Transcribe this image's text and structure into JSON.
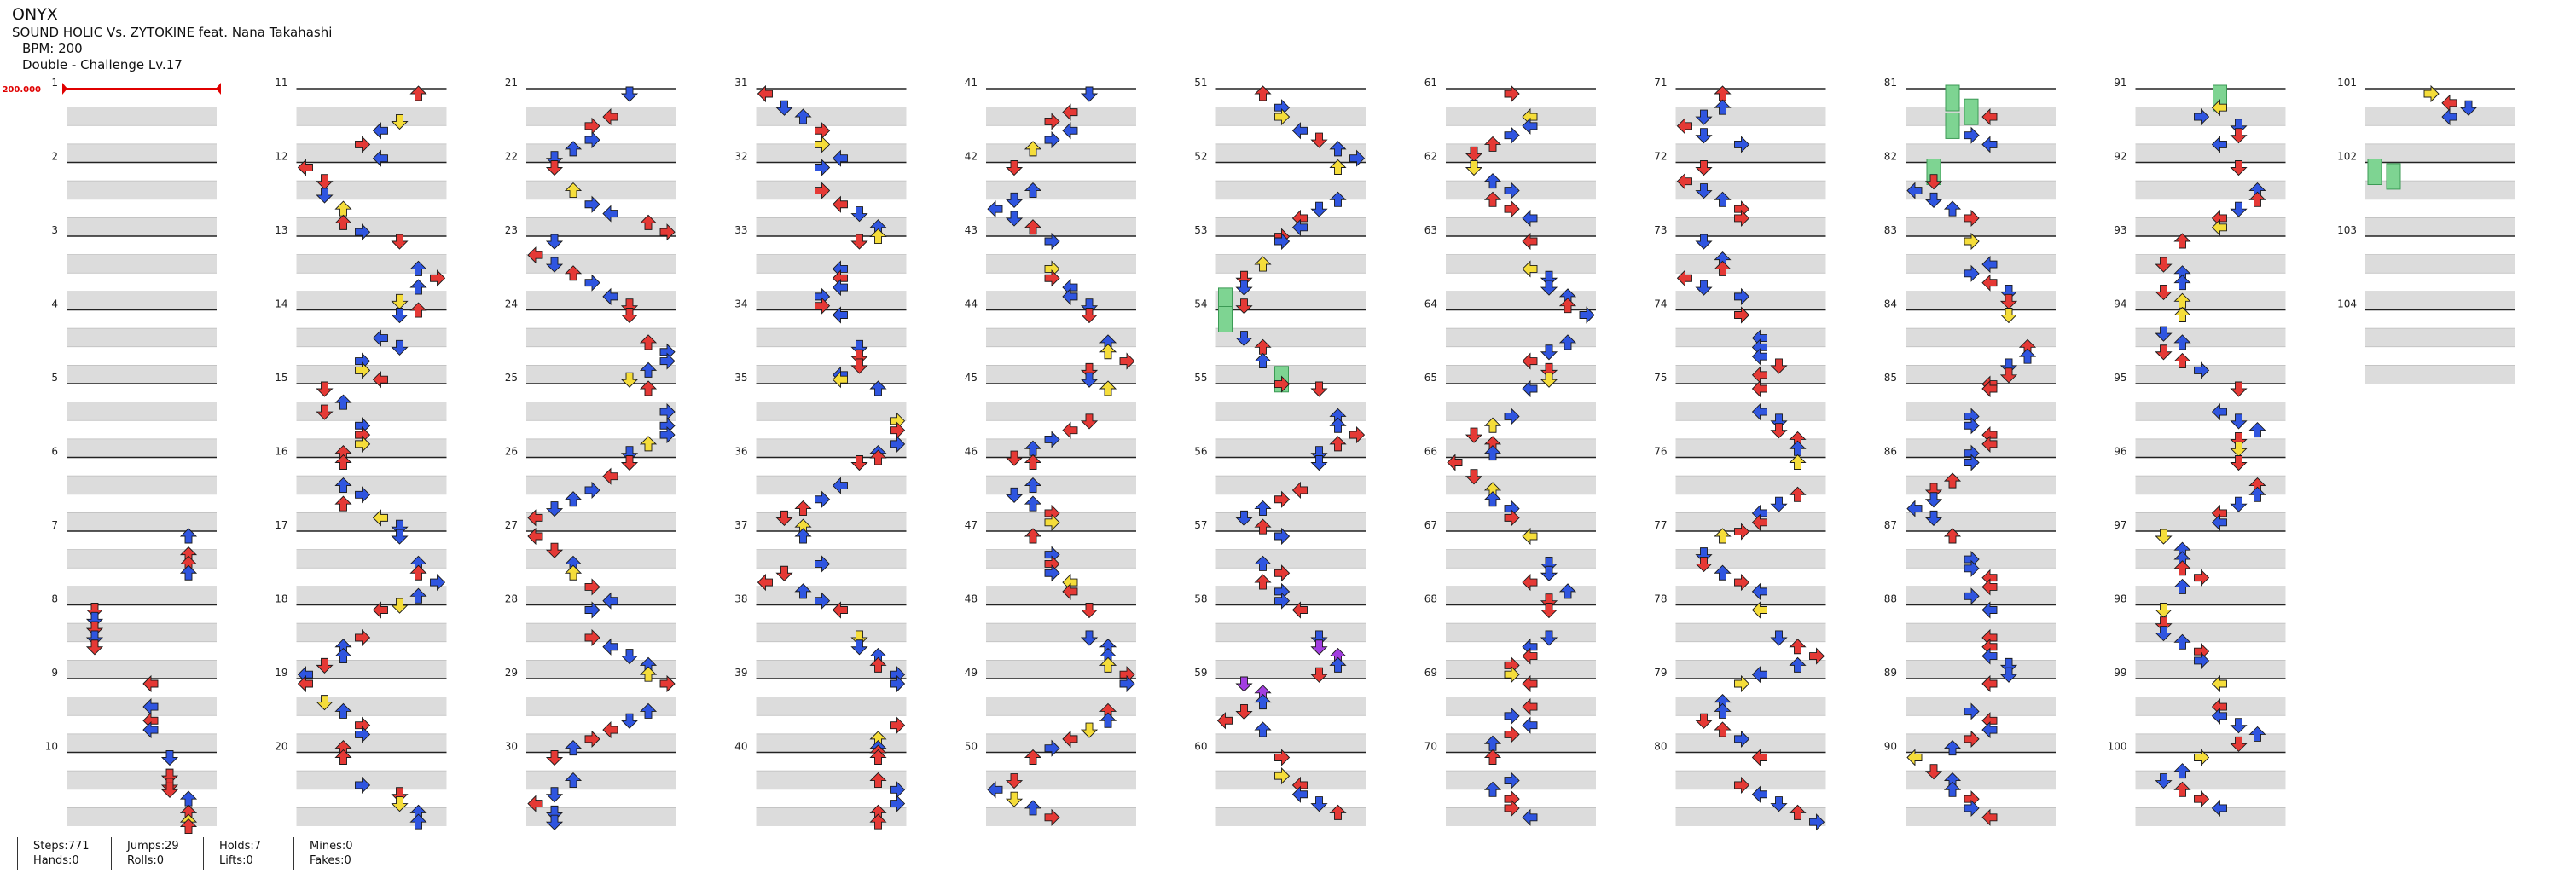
{
  "song": {
    "title": "ONYX",
    "artist_line": "SOUND HOLIC Vs. ZYTOKINE feat. Nana Takahashi",
    "bpm_line": "BPM: 200",
    "difficulty_line": "Double - Challenge Lv.17"
  },
  "bpm_marker": "200.000",
  "measure_count": 104,
  "columns": 11,
  "measures_per_column": 10,
  "measure_labels": [
    "1",
    "2",
    "3",
    "4",
    "5",
    "6",
    "7",
    "8",
    "9",
    "10",
    "11",
    "12",
    "13",
    "14",
    "15",
    "16",
    "17",
    "18",
    "19",
    "20",
    "21",
    "22",
    "23",
    "24",
    "25",
    "26",
    "27",
    "28",
    "29",
    "30",
    "31",
    "32",
    "33",
    "34",
    "35",
    "36",
    "37",
    "38",
    "39",
    "40",
    "41",
    "42",
    "43",
    "44",
    "45",
    "46",
    "47",
    "48",
    "49",
    "50",
    "51",
    "52",
    "53",
    "54",
    "55",
    "56",
    "57",
    "58",
    "59",
    "60",
    "61",
    "62",
    "63",
    "64",
    "65",
    "66",
    "67",
    "68",
    "69",
    "70",
    "71",
    "72",
    "73",
    "74",
    "75",
    "76",
    "77",
    "78",
    "79",
    "80",
    "81",
    "82",
    "83",
    "84",
    "85",
    "86",
    "87",
    "88",
    "89",
    "90",
    "91",
    "92",
    "93",
    "94",
    "95",
    "96",
    "97",
    "98",
    "99",
    "100",
    "101",
    "102",
    "103",
    "104"
  ],
  "colors": {
    "quarter": "#e53935",
    "eighth": "#2f55e0",
    "sixteenth": "#f5dd3a",
    "twelfth": "#a23ee0",
    "freeze": "#7ed492",
    "band": "#dcdcdc",
    "line": "#222222",
    "bpm": "#e00000"
  },
  "notes": [
    "7:2:6,3:4:6,3:6:6,2:8:6",
    "8:1:1,2:2:1,1:4:1,4:6:1,3:8:1",
    "9:3:4,2:5:4,3:8:4,2:10:4",
    "10:2:5,3:4:5,3:6:5,1:7:5,2:9:6,3:12:6,5:14:6,3:15:6",
    "11:3:6,5:6:5,2:8:4,3:11:3,2:14:4",
    "12:1:0,3:3:1,4:6:1,5:9:2,3:12:2,4:14:3",
    "13:3:5,2:6:6,1:8:7,6:10:6,5:13:5,3:15:6",
    "14:2:5,6:5:4,4:7:5,2:10:3,5:12:3,3:14:4",
    "15:1:1,4:3:2,3:5:1,2:8:3,3:10:3,5:12:3,1:14:2",
    "16:3:2,2:5:2,4:7:3,1:9:2,5:12:4,2:14:5",
    "17:4:5,6:6:6,3:8:6,2:10:7,6:13:6,5:15:5",
    "18:3:4,1:6:3,2:8:2,4:10:2,3:12:1,6:14:0",
    "19:1:0,5:4:1,2:6:2,3:9:3,4:11:3,1:14:2",
    "20:3:2,4:6:3,3:8:5,5:10:5,2:12:6,4:14:6",
    "21:2:5,1:5:4,3:7:3,4:10:3,6:12:2,2:14:1",
    "22:3:1,5:5:2,2:8:3,4:10:4,3:12:6,1:14:7",
    "23:6:1,3:3:0,4:5:1,1:7:2,4:9:3,6:12:4,3:14:5",
    "24:3:5,1:6:6,2:8:7,6:10:7,4:12:6,5:14:5",
    "25:3:6,2:5:7,4:8:7,4:10:7,5:12:6,2:14:5",
    "26:1:5,3:3:4,2:6:3,4:8:2,6:10:1,3:12:0",
    "27:1:0,3:3:1,4:6:2,5:8:2,3:11:3,2:14:4",
    "28:4:3,1:6:3,6:8:4,2:10:5,4:12:6,5:14:6",
    "29:3:7,2:6:6,4:8:5,1:10:4,3:12:3,6:14:2",
    "30:3:1,2:5:2,4:8:1,1:10:0,4:12:1,2:14:1",
    "31:1:0,2:3:1,4:5:2,3:8:3,5:11:3,2:14:4",
    "32:6:3,3:5:3,1:8:4,4:10:5,2:13:6,5:15:6",
    "33:3:5,4:6:4,1:8:4,2:10:4,4:12:3,3:14:3",
    "34:6:4,2:7:5,3:9:5,1:11:5,4:13:4,5:14:4",
    "35:4:6,5:7:7,3:9:7,2:12:7,6:14:6,1:15:6",
    "36:3:5,2:5:4,4:8:3,1:10:2,3:12:1,5:14:2",
    "37:4:2,2:6:3,1:8:1,3:10:0,2:12:2,6:14:3",
    "38:3:4,5:6:5,4:8:5,2:10:6,3:12:6,4:14:7",
    "39:6:7,1:9:7,5:12:6,4:14:6,3:15:6",
    "40:3:6,1:5:6,2:7:7,4:10:7,3:12:6,1:14:6",
    "41:2:5,1:4:4,3:6:3,4:8:4,6:10:3,5:12:2",
    "42:3:1,4:5:2,2:7:1,6:9:0,4:11:1,3:13:2",
    "43:4:3,5:6:3,1:8:3,2:10:4,4:12:4,6:14:5",
    "44:3:5,2:6:6,5:8:6,1:10:7,3:12:5,4:14:5",
    "45:5:6,1:7:5,3:9:4,2:11:3,4:13:2,1:15:1",
    "46:3:2,4:5:2,6:7:1,2:9:2,3:11:3,5:13:3",
    "47:1:2,4:4:3,3:6:3,2:8:3,5:10:4,1:12:4",
    "48:3:5,2:6:5,4:8:6,6:10:6,5:12:6,1:14:7",
    "49:4:7,3:6:6,2:8:6,5:10:5,3:12:4,6:14:3",
    "50:3:2,1:5:1,2:7:0,5:9:1,4:11:2,3:13:3",
    "51:1:2,2:3:3,5:5:3,4:8:4,3:10:5,6:12:6,2:14:7",
    "52:5:6,2:7:6,4:9:5,3:11:4,6:13:4,1:15:3",
    "53:2:3,5:5:2,3:8:1,4:10:1,7:12:0,1:14:1",
    "54:7:0,2:5:1,3:7:2,4:10:2,7:13:3,1:15:3",
    "55:3:5,2:6:6,4:8:6,1:10:7,3:12:6,2:14:5",
    "56:4:5,3:6:4,1:8:3,2:10:2,4:12:1,3:14:2",
    "57:4:3,2:6:2,3:8:3,1:10:2,4:12:3,6:14:3",
    "58:1:4,2:6:5,8:8:5,8:10:6,2:12:6,3:14:5",
    "59:8:1,8:2:2,4:4:2,3:6:1,1:8:0,2:10:2",
    "60:1:3,5:4:3,3:6:4,2:8:4,4:10:5,1:12:6",
    "61:3:3,5:5:4,2:7:4,4:9:3,1:11:2,3:13:1",
    "62:5:1,2:3:2,4:5:3,1:7:2,3:9:3,6:11:4",
    "63:3:4,5:6:4,4:8:5,2:10:5,6:12:6,3:14:6",
    "64:6:7,2:6:6,4:8:5,1:10:4,3:12:5,5:14:5",
    "65:4:4,2:6:3,5:8:2,3:10:1,1:12:2,4:14:2",
    "66:1:0,3:3:1,5:6:2,2:8:2,4:10:3,1:12:3",
    "67:5:4,2:6:5,4:8:5,3:10:4,6:12:6,1:14:5",
    "68:3:5,2:6:5,4:8:4,1:10:4,3:12:3,5:14:3",
    "69:3:4,1:5:4,2:7:3,4:9:4,3:11:3,6:13:2",
    "70:3:2,2:5:3,4:7:2,1:9:3,3:11:3,6:13:4",
    "71:1:2,2:3:2,4:5:1,3:7:0,6:9:1,2:11:3",
    "72:1:1,3:3:0,2:5:1,4:7:2,3:9:3,1:11:3",
    "73:2:1,4:4:2,3:6:2,1:8:0,6:10:1,2:12:3",
    "74:3:3,2:5:4,4:7:4,6:9:4,3:11:5,1:13:4",
    "75:3:4,2:5:4,4:7:5,1:9:5,3:11:6,2:13:6",
    "76:5:6,3:7:6,4:9:5,2:11:4,3:13:4,1:15:3",
    "77:5:2,2:4:1,3:6:1,4:8:2,1:10:3,2:12:4",
    "78:5:4,4:6:5,3:8:6,1:10:7,6:12:6,2:14:4",
    "79:5:3,2:4:2,4:6:2,3:8:1,1:10:2,4:12:3",
    "80:3:4,1:6:3,2:8:4,4:10:5,3:12:6,6:14:7",
    "81:7:2,7:3:3,3:5:4,7:6:2,2:9:3,4:11:4",
    "82:7:1,3:3:1,2:5:0,4:7:1,6:9:2,3:11:3",
    "83:5:3,4:5:4,2:7:3,3:9:4,6:11:5,1:13:5",
    "84:5:5,3:7:6,2:9:6,4:11:5,3:13:5,1:15:4",
    "85:3:4,2:6:3,4:8:3,1:10:4,3:12:4,6:14:3",
    "86:2:3,1:4:2,3:6:1,4:8:1,6:10:0,2:12:1",
    "87:3:2,2:5:3,4:7:3,1:9:4,3:11:4,6:13:3",
    "88:2:4,1:6:4,3:8:4,4:10:4,2:12:5,6:14:5",
    "89:3:4,2:6:3,1:8:4,4:10:4,3:12:3,6:14:2",
    "90:5:0,1:3:1,2:5:2,4:7:2,3:9:3,6:11:3,1:13:4",
    "91:7:4,5:3:4,2:5:3,4:7:5,3:9:5,6:11:4",
    "92:3:5,2:5:6,1:7:6,4:9:5,3:11:4,5:13:4",
    "93:3:2,1:5:1,4:7:2,2:9:2,3:11:1,5:13:2",
    "94:5:2,2:4:1,4:6:2,3:8:1,1:10:2,6:12:3",
    "95:3:5,2:5:4,4:7:5,6:9:6,3:11:5,5:13:5",
    "96:3:5,1:5:6,4:7:6,2:9:5,3:11:4,6:13:4",
    "97:5:1,2:3:2,4:5:2,1:7:2,3:9:3,6:11:2",
    "98:5:1,3:3:1,2:5:1,4:7:2,1:9:3,6:11:3",
    "99:5:4,3:5:4,2:7:4,4:9:5,6:11:6,1:13:5",
    "100:5:3,2:3:2,4:5:1,1:7:2,3:9:3,6:11:4",
    "101:5:3,3:2:4,2:3:5,4:5:4",
    "102:7:0,7:1:1"
  ],
  "stats": {
    "steps": "Steps:771",
    "hands": "Hands:0",
    "jumps": "Jumps:29",
    "rolls": "Rolls:0",
    "holds": "Holds:7",
    "lifts": "Lifts:0",
    "mines": "Mines:0",
    "fakes": "Fakes:0"
  }
}
